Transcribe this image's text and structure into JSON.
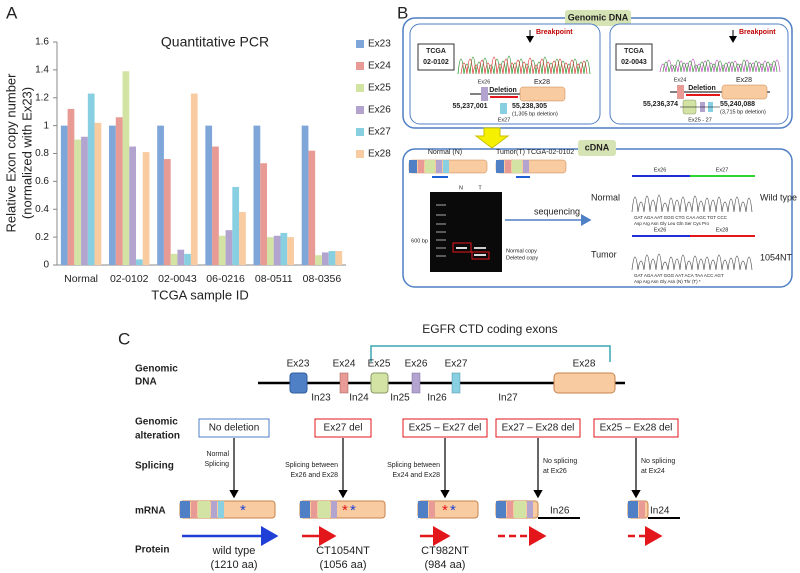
{
  "chart_data": {
    "type": "bar",
    "panel_label": "A",
    "title": "Quantitative PCR",
    "y_label": [
      "Relative Exon copy number",
      "(normalized with Ex23)"
    ],
    "x_label": "TCGA sample ID",
    "categories": [
      "Normal",
      "02-0102",
      "02-0043",
      "06-0216",
      "08-0511",
      "08-0356"
    ],
    "series": [
      {
        "name": "Ex23",
        "color": "#7fa6d9",
        "values": [
          1.0,
          1.0,
          1.0,
          1.0,
          1.0,
          1.0
        ]
      },
      {
        "name": "Ex24",
        "color": "#e89a94",
        "values": [
          1.12,
          1.06,
          0.76,
          0.85,
          0.73,
          0.82
        ]
      },
      {
        "name": "Ex25",
        "color": "#d3e3a4",
        "values": [
          0.9,
          1.39,
          0.08,
          0.21,
          0.2,
          0.07
        ]
      },
      {
        "name": "Ex26",
        "color": "#b3a3cf",
        "values": [
          0.92,
          0.85,
          0.11,
          0.25,
          0.21,
          0.09
        ]
      },
      {
        "name": "Ex27",
        "color": "#88cfe2",
        "values": [
          1.23,
          0.04,
          0.08,
          0.56,
          0.23,
          0.1
        ]
      },
      {
        "name": "Ex28",
        "color": "#f9cba0",
        "values": [
          1.02,
          0.81,
          1.23,
          0.38,
          0.2,
          0.1
        ]
      }
    ],
    "ylim": [
      0,
      1.6
    ],
    "yticks": [
      0,
      0.2,
      0.4,
      0.6,
      0.8,
      1,
      1.2,
      1.4,
      1.6
    ]
  },
  "panel_b": {
    "label": "B",
    "genomic_title": "Genomic DNA",
    "left": {
      "sample": [
        "TCGA",
        "02-0102"
      ],
      "breakpoint": "Breakpoint",
      "exon_a": "Ex26",
      "exon_b": "Ex28",
      "deletion": "Deletion",
      "exon_mid": "Ex27",
      "start": "55,237,001",
      "end": "55,238,305",
      "size": "(1,305 bp deletion)"
    },
    "right": {
      "sample": [
        "TCGA",
        "02-0043"
      ],
      "breakpoint": "Breakpoint",
      "exon_a": "Ex24",
      "exon_b": "Ex28",
      "deletion": "Deletion",
      "exon_mid": "Ex25 - 27",
      "start": "55,236,374",
      "end": "55,240,088",
      "size": "(3,715 bp deletion)"
    },
    "cdna": {
      "title": "cDNA",
      "normal": "Normal (N)",
      "tumor": "Tumor(T) TCGA-02-0102",
      "lane_n": "N",
      "lane_t": "T",
      "marker": "600 bp",
      "normal_copy": "Normal copy",
      "deleted_copy": "Deleted copy",
      "sequencing": "sequencing",
      "row_normal": "Normal",
      "row_tumor": "Tumor",
      "n_ex_a": "Ex26",
      "n_ex_b": "Ex27",
      "t_ex_a": "Ex26",
      "t_ex_b": "Ex28",
      "wild": "Wild type",
      "mutant": "1054NT",
      "n_codons": "GAT  AGA  AAT  GGG  CTG  CAA  AGC  TGT  CCC",
      "n_aa": "Asp  Arg  Asn  Gly  Leu  Gln  Ser  Cys  Pro",
      "t_codons": "GAT  AGA  AAT  GGG  AAT  ACA  TAA  ACC  AGT",
      "t_aa": "Asp  Arg  Asn  Gly  Asn (N)  Thr (T)  *"
    }
  },
  "panel_c": {
    "label": "C",
    "bracket": "EGFR CTD coding exons",
    "rows": {
      "genomic": [
        "Genomic",
        "DNA"
      ],
      "alteration": [
        "Genomic",
        "alteration"
      ],
      "splicing": "Splicing",
      "mrna": "mRNA",
      "protein": "Protein"
    },
    "exons": [
      "Ex23",
      "Ex24",
      "Ex25",
      "Ex26",
      "Ex27",
      "Ex28"
    ],
    "introns": [
      "In23",
      "In24",
      "In25",
      "In26",
      "In27"
    ],
    "alterations": [
      "No deletion",
      "Ex27 del",
      "Ex25 – Ex27 del",
      "Ex27 – Ex28 del",
      "Ex25 – Ex28 del"
    ],
    "splicing": [
      [
        "Normal",
        "Splicing"
      ],
      [
        "Splicing between",
        "Ex26 and Ex28"
      ],
      [
        "Splicing between",
        "Ex24 and Ex28"
      ],
      [
        "No splicing",
        "at Ex26"
      ],
      [
        "No splicing",
        "at Ex24"
      ]
    ],
    "mrna_introns": [
      "In26",
      "In24"
    ],
    "proteins": [
      [
        "wild type",
        "(1210 aa)"
      ],
      [
        "CT1054NT",
        "(1056 aa)"
      ],
      [
        "CT982NT",
        "(984 aa)"
      ]
    ]
  }
}
